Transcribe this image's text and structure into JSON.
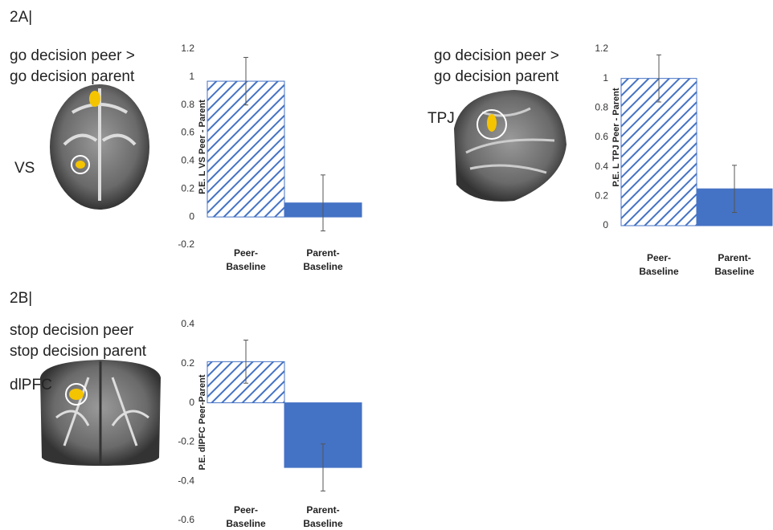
{
  "panel_labels": [
    "2A|",
    "2B|"
  ],
  "chart_data": [
    {
      "type": "bar",
      "title": [
        "go decision peer >",
        "go decision parent"
      ],
      "region": "VS",
      "y_label": "P.E. L VS Peer - Parent",
      "categories": [
        "Peer-Baseline",
        "Parent-Baseline"
      ],
      "values": [
        0.97,
        0.1
      ],
      "errors": [
        0.17,
        0.2
      ],
      "patterns": [
        "hatch",
        "solid"
      ],
      "color": "#4472c4",
      "ylim": [
        -0.2,
        1.2
      ],
      "yticks": [
        -0.2,
        0,
        0.2,
        0.4,
        0.6,
        0.8,
        1,
        1.2
      ]
    },
    {
      "type": "bar",
      "title": [
        "go decision peer >",
        "go decision parent"
      ],
      "region": "TPJ",
      "y_label": "P.E. L TPJ Peer - Parent",
      "categories": [
        "Peer-Baseline",
        "Parent-Baseline"
      ],
      "values": [
        1.0,
        0.25
      ],
      "errors": [
        0.16,
        0.16
      ],
      "patterns": [
        "hatch",
        "solid"
      ],
      "color": "#4472c4",
      "ylim": [
        0,
        1.2
      ],
      "yticks": [
        0,
        0.2,
        0.4,
        0.6,
        0.8,
        1,
        1.2
      ]
    },
    {
      "type": "bar",
      "title": [
        "stop decision peer",
        "stop decision parent"
      ],
      "region": "dlPFC",
      "y_label": "P.E. dlPFC Peer-Parent",
      "categories": [
        "Peer-Baseline",
        "Parent-Baseline"
      ],
      "values": [
        0.21,
        -0.33
      ],
      "errors": [
        0.11,
        0.12
      ],
      "patterns": [
        "hatch",
        "solid"
      ],
      "color": "#4472c4",
      "ylim": [
        -0.6,
        0.4
      ],
      "yticks": [
        -0.6,
        -0.4,
        -0.2,
        0,
        0.2,
        0.4
      ]
    }
  ]
}
